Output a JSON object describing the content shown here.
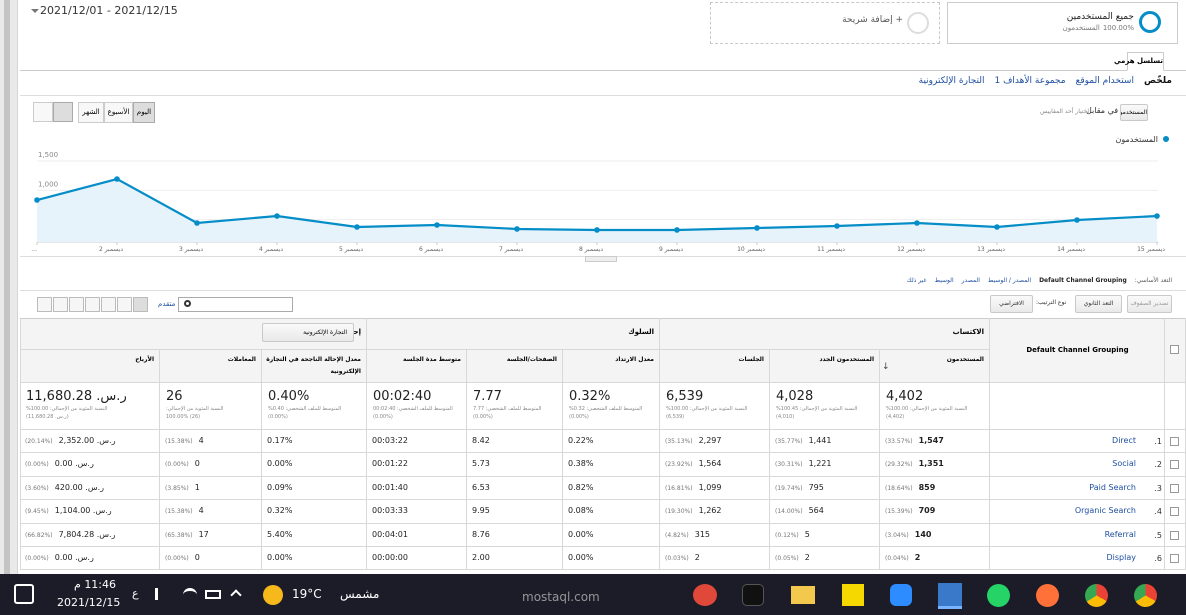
{
  "header": {
    "date_range": "2021/12/01 - 2021/12/15",
    "add_segment": "+ إضافة شريحة",
    "segment": {
      "name": "جميع المستخدمين",
      "value": "100.00%",
      "label": "المستخدمون"
    }
  },
  "tab": "تسلسل هرمي",
  "nav": [
    "ملخّص",
    "استخدام الموقع",
    "مجموعة الأهداف 1",
    "التجارة الإلكترونية"
  ],
  "controls": {
    "periods": [
      "اليوم",
      "الأسبوع",
      "الشهر"
    ],
    "metric": "المستخدمون",
    "versus": "في مقابل",
    "choose_metric": "اختيار أحد المقاييس"
  },
  "chart_data": {
    "type": "line",
    "categories": [
      "...",
      "ديسمبر 2",
      "ديسمبر 3",
      "ديسمبر 4",
      "ديسمبر 5",
      "ديسمبر 6",
      "ديسمبر 7",
      "ديسمبر 8",
      "ديسمبر 9",
      "ديسمبر 10",
      "ديسمبر 11",
      "ديسمبر 12",
      "ديسمبر 13",
      "ديسمبر 14",
      "ديسمبر 15"
    ],
    "series": [
      {
        "name": "المستخدمون",
        "color": "#058dc7",
        "values": [
          767,
          1125,
          375,
          494,
          307,
          341,
          273,
          256,
          256,
          290,
          324,
          375,
          307,
          426,
          494
        ]
      }
    ],
    "ylim": [
      0,
      1500
    ],
    "yticks": [
      500,
      {
        "value": 1000,
        "label": "1,000"
      },
      {
        "value": 1500,
        "label": "1,500"
      }
    ],
    "grid": true
  },
  "dimensions": {
    "label": "التعد الأساسي:",
    "items": [
      "Default Channel Grouping",
      "المصدر / الوسيط",
      "المصدر",
      "الوسيط",
      "غير ذلك"
    ]
  },
  "toolbar": {
    "advanced": "متقدم",
    "export": "تصدير الصفوف",
    "secondary": "التعد الثانوي",
    "sort_label": "نوع الترتيب:",
    "sort": "الافتراضي"
  },
  "table": {
    "groups": [
      "الاكتساب",
      "السلوك",
      "إحالات ناجحة"
    ],
    "goal_select": "التجارة الإلكترونية",
    "columns": [
      "Default Channel Grouping",
      "المستخدمون",
      "المستخدمون الجدد",
      "الجلسات",
      "معدل الارتداد",
      "الصفحات/الجلسة",
      "متوسط مدة الجلسة",
      "معدل الإحالة الناجحة في التجارة الإلكترونية",
      "المعاملات",
      "الأرباح"
    ],
    "totals": [
      [
        "4,402",
        "النسبة المئوية من الإجمالي: 100.00%",
        "(4,402)"
      ],
      [
        "4,028",
        "النسبة المئوية من الإجمالي: 100.45%",
        "(4,010)"
      ],
      [
        "6,539",
        "النسبة المئوية من الإجمالي: 100.00%",
        "(6,539)"
      ],
      [
        "0.32%",
        "المتوسط للملف الشخصي: 0.32%",
        "(0.00%)"
      ],
      [
        "7.77",
        "المتوسط للملف الشخصي: 7.77",
        "(0.00%)"
      ],
      [
        "00:02:40",
        "المتوسط للملف الشخصي: 00:02:40",
        "(0.00%)"
      ],
      [
        "0.40%",
        "المتوسط للملف الشخصي: 0.40%",
        "(0.00%)"
      ],
      [
        "26",
        "النسبة المئوية من الإجمالي:",
        "100.00% (26)"
      ],
      [
        "ر.س. 11,680.28",
        "النسبة المئوية من الإجمالي: 100.00%",
        "(ر.س. 11,680.28)"
      ]
    ],
    "rows": [
      {
        "index": "1.",
        "channel": "Direct",
        "cells": [
          [
            "1,547",
            "(33.57%)"
          ],
          [
            "1,441",
            "(35.77%)"
          ],
          [
            "2,297",
            "(35.13%)"
          ],
          [
            "0.22%"
          ],
          [
            "8.42"
          ],
          [
            "00:03:22"
          ],
          [
            "0.17%"
          ],
          [
            "4",
            "(15.38%)"
          ],
          [
            "ر.س. 2,352.00",
            "(20.14%)"
          ]
        ]
      },
      {
        "index": "2.",
        "channel": "Social",
        "cells": [
          [
            "1,351",
            "(29.32%)"
          ],
          [
            "1,221",
            "(30.31%)"
          ],
          [
            "1,564",
            "(23.92%)"
          ],
          [
            "0.38%"
          ],
          [
            "5.73"
          ],
          [
            "00:01:22"
          ],
          [
            "0.00%"
          ],
          [
            "0",
            "(0.00%)"
          ],
          [
            "ر.س. 0.00",
            "(0.00%)"
          ]
        ]
      },
      {
        "index": "3.",
        "channel": "Paid Search",
        "cells": [
          [
            "859",
            "(18.64%)"
          ],
          [
            "795",
            "(19.74%)"
          ],
          [
            "1,099",
            "(16.81%)"
          ],
          [
            "0.82%"
          ],
          [
            "6.53"
          ],
          [
            "00:01:40"
          ],
          [
            "0.09%"
          ],
          [
            "1",
            "(3.85%)"
          ],
          [
            "ر.س. 420.00",
            "(3.60%)"
          ]
        ]
      },
      {
        "index": "4.",
        "channel": "Organic Search",
        "cells": [
          [
            "709",
            "(15.39%)"
          ],
          [
            "564",
            "(14.00%)"
          ],
          [
            "1,262",
            "(19.30%)"
          ],
          [
            "0.08%"
          ],
          [
            "9.95"
          ],
          [
            "00:03:33"
          ],
          [
            "0.32%"
          ],
          [
            "4",
            "(15.38%)"
          ],
          [
            "ر.س. 1,104.00",
            "(9.45%)"
          ]
        ]
      },
      {
        "index": "5.",
        "channel": "Referral",
        "cells": [
          [
            "140",
            "(3.04%)"
          ],
          [
            "5",
            "(0.12%)"
          ],
          [
            "315",
            "(4.82%)"
          ],
          [
            "0.00%"
          ],
          [
            "8.76"
          ],
          [
            "00:04:01"
          ],
          [
            "5.40%"
          ],
          [
            "17",
            "(65.38%)"
          ],
          [
            "ر.س. 7,804.28",
            "(66.82%)"
          ]
        ]
      },
      {
        "index": "6.",
        "channel": "Display",
        "cells": [
          [
            "2",
            "(0.04%)"
          ],
          [
            "2",
            "(0.05%)"
          ],
          [
            "2",
            "(0.03%)"
          ],
          [
            "0.00%"
          ],
          [
            "2.00"
          ],
          [
            "00:00:00"
          ],
          [
            "0.00%"
          ],
          [
            "0",
            "(0.00%)"
          ],
          [
            "ر.س. 0.00",
            "(0.00%)"
          ]
        ]
      }
    ]
  },
  "taskbar": {
    "time": "11:46 م",
    "date": "2021/12/15",
    "lang": "ع",
    "temp": "19°C",
    "weather": "مشمس"
  },
  "watermark": "mostaql.com"
}
